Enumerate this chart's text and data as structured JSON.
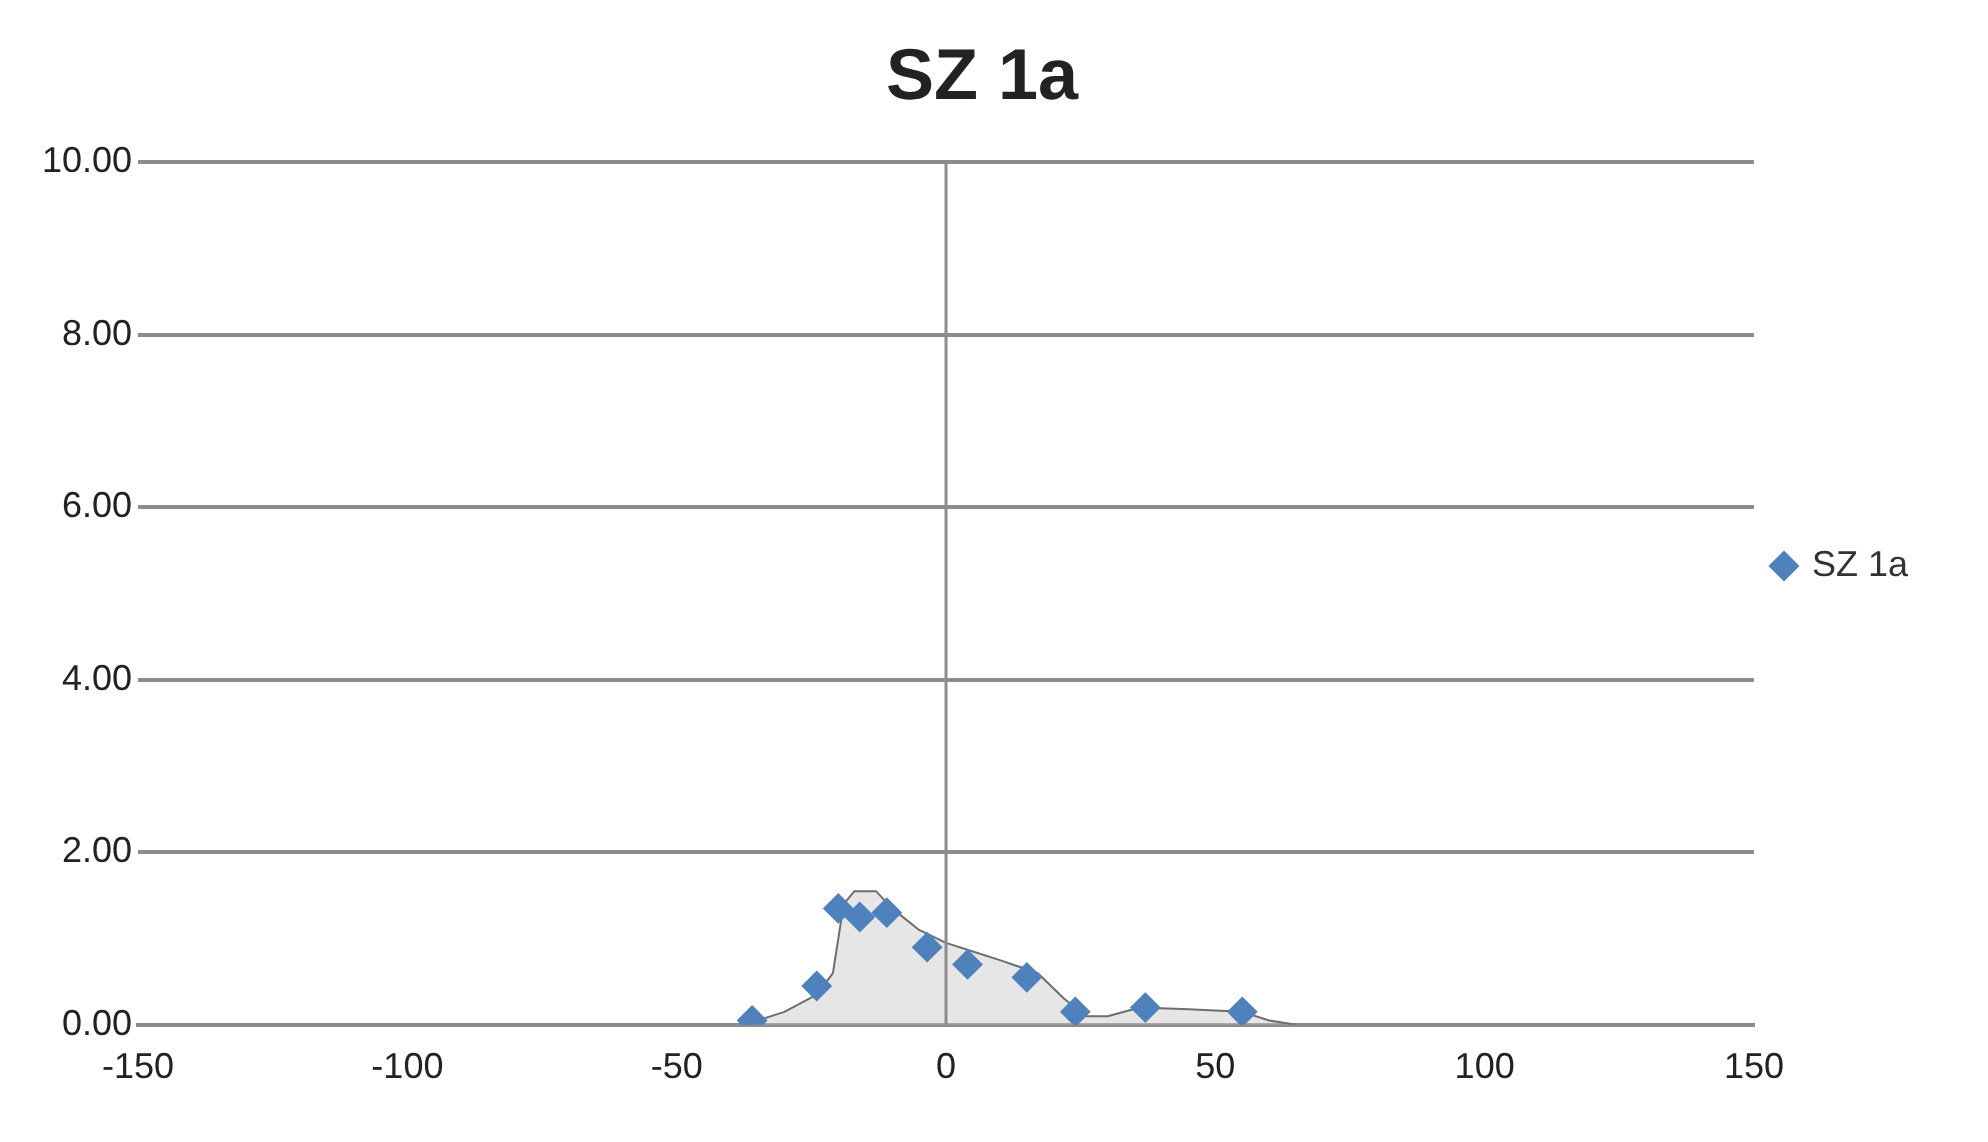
{
  "chart_data": {
    "type": "scatter",
    "title": "SZ 1a",
    "xlim": [
      -150,
      150
    ],
    "xticks": [
      -150,
      -100,
      -50,
      0,
      50,
      100,
      150
    ],
    "ylim": [
      0,
      10
    ],
    "yticks": [
      {
        "value": 0,
        "label": "0.00"
      },
      {
        "value": 2,
        "label": "2.00"
      },
      {
        "value": 4,
        "label": "4.00"
      },
      {
        "value": 6,
        "label": "6.00"
      },
      {
        "value": 8,
        "label": "8.00"
      },
      {
        "value": 10,
        "label": "10.00"
      }
    ],
    "grid": "y",
    "legend": "right",
    "marker": "diamond",
    "ref_lines": [
      {
        "axis": "x",
        "value": 0,
        "color": "#8c8c8c"
      }
    ],
    "series": [
      {
        "type": "area",
        "marker": "none",
        "color": "#6e6e6e",
        "x": [
          -36,
          -30,
          -24,
          -21,
          -19,
          -17,
          -13,
          -10,
          -5,
          0,
          5,
          10,
          17,
          22,
          26,
          30,
          36,
          45,
          55,
          60,
          65
        ],
        "values": [
          0.03,
          0.15,
          0.35,
          0.6,
          1.4,
          1.55,
          1.55,
          1.35,
          1.1,
          0.95,
          0.85,
          0.75,
          0.6,
          0.3,
          0.1,
          0.1,
          0.2,
          0.18,
          0.15,
          0.05,
          0
        ]
      },
      {
        "type": "scatter",
        "name": "SZ 1a",
        "color": "#4f81bd",
        "x": [
          -36,
          -24,
          -20,
          -16,
          -11,
          -3.5,
          4,
          15,
          24,
          37,
          55
        ],
        "values": [
          0.05,
          0.45,
          1.35,
          1.25,
          1.3,
          0.9,
          0.7,
          0.55,
          0.15,
          0.2,
          0.15
        ]
      }
    ]
  }
}
